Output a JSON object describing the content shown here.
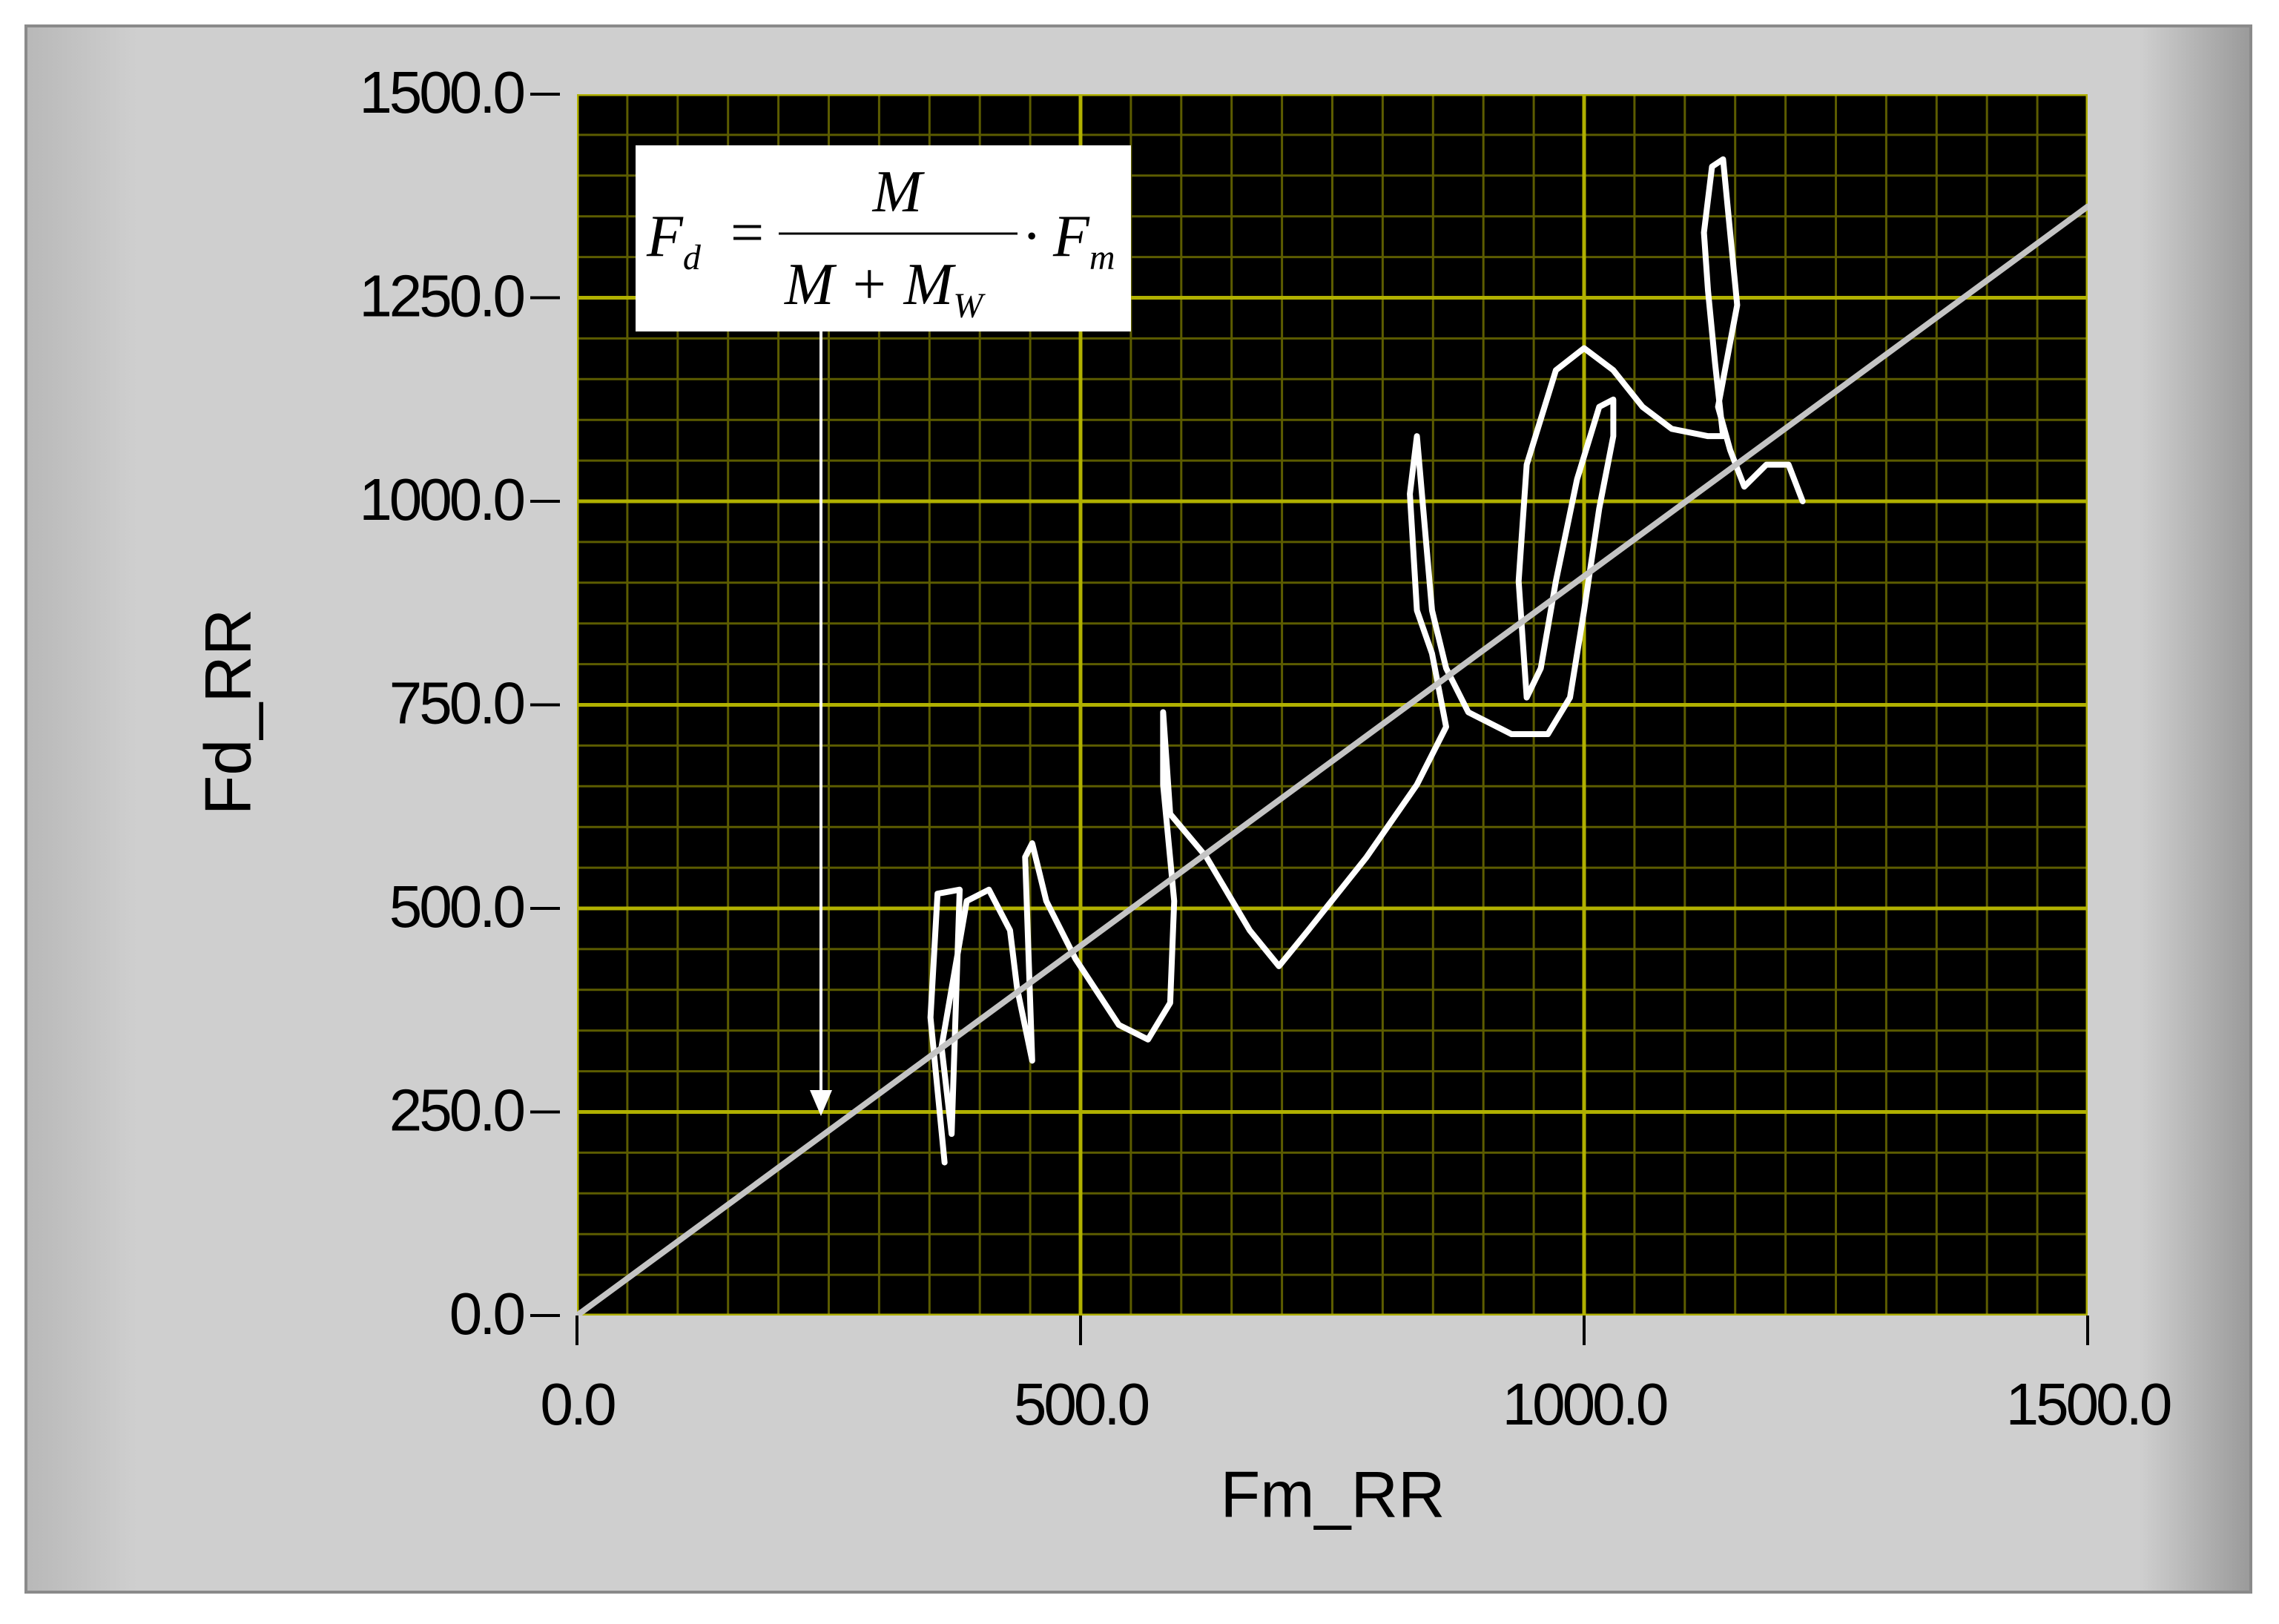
{
  "chart_data": {
    "type": "line",
    "x_label": "Fm_RR",
    "y_label": "Fd_RR",
    "xlim": [
      0,
      1500
    ],
    "ylim": [
      0,
      1500
    ],
    "xticks": [
      {
        "value": 0,
        "label": "0.0"
      },
      {
        "value": 500,
        "label": "500.0"
      },
      {
        "value": 1000,
        "label": "1000.0"
      },
      {
        "value": 1500,
        "label": "1500.0"
      }
    ],
    "yticks": [
      {
        "value": 0,
        "label": "0.0"
      },
      {
        "value": 250,
        "label": "250.0"
      },
      {
        "value": 500,
        "label": "500.0"
      },
      {
        "value": 750,
        "label": "750.0"
      },
      {
        "value": 1000,
        "label": "1000.0"
      },
      {
        "value": 1250,
        "label": "1250.0"
      },
      {
        "value": 1500,
        "label": "1500.0"
      }
    ],
    "minor_xticks": [
      50,
      100,
      150,
      200,
      250,
      300,
      350,
      400,
      450,
      550,
      600,
      650,
      700,
      750,
      800,
      850,
      900,
      950,
      1050,
      1100,
      1150,
      1200,
      1250,
      1300,
      1350,
      1400,
      1450
    ],
    "minor_yticks": [
      50,
      100,
      150,
      200,
      300,
      350,
      400,
      450,
      550,
      600,
      650,
      700,
      800,
      850,
      900,
      950,
      1050,
      1100,
      1150,
      1200,
      1300,
      1350,
      1400,
      1450
    ],
    "grid": true,
    "background": "#000000",
    "grid_color": "#5c5c00",
    "major_grid_color": "#b0b000",
    "series": [
      {
        "color": "#ffffff",
        "x": [
          365,
          351,
          358,
          380,
          372,
          362,
          387,
          409,
          430,
          437,
          452,
          445,
          452,
          466,
          495,
          538,
          567,
          589,
          593,
          582,
          582,
          589,
          625,
          668,
          697,
          726,
          784,
          834,
          863,
          849,
          834,
          827,
          834,
          849,
          863,
          885,
          928,
          964,
          986,
          1000,
          1015,
          1029,
          1029,
          1015,
          993,
          972,
          957,
          943,
          935,
          943,
          972,
          1000,
          1029,
          1058,
          1087,
          1123,
          1138,
          1130,
          1123,
          1119,
          1127,
          1138,
          1145,
          1152,
          1133,
          1145,
          1159,
          1181,
          1203,
          1217
        ],
        "values": [
          188,
          366,
          518,
          523,
          223,
          330,
          509,
          523,
          473,
          402,
          313,
          563,
          580,
          509,
          438,
          357,
          339,
          384,
          509,
          652,
          741,
          616,
          563,
          473,
          429,
          473,
          563,
          652,
          723,
          813,
          866,
          1009,
          1080,
          866,
          795,
          741,
          714,
          714,
          759,
          866,
          991,
          1080,
          1125,
          1116,
          1027,
          902,
          795,
          759,
          902,
          1045,
          1161,
          1188,
          1161,
          1116,
          1089,
          1080,
          1080,
          1170,
          1259,
          1330,
          1411,
          1420,
          1330,
          1241,
          1116,
          1063,
          1018,
          1045,
          1045,
          1000
        ]
      },
      {
        "color": "#c4c4c4",
        "x": [
          0,
          1500
        ],
        "values": [
          0,
          1362
        ]
      }
    ],
    "annotation": {
      "lhs": "F",
      "lhs_sub": "d",
      "equals": "=",
      "numerator": "M",
      "denominator": "M + M",
      "denominator_sub": "W",
      "rhs": "· F",
      "rhs_sub": "m"
    }
  }
}
